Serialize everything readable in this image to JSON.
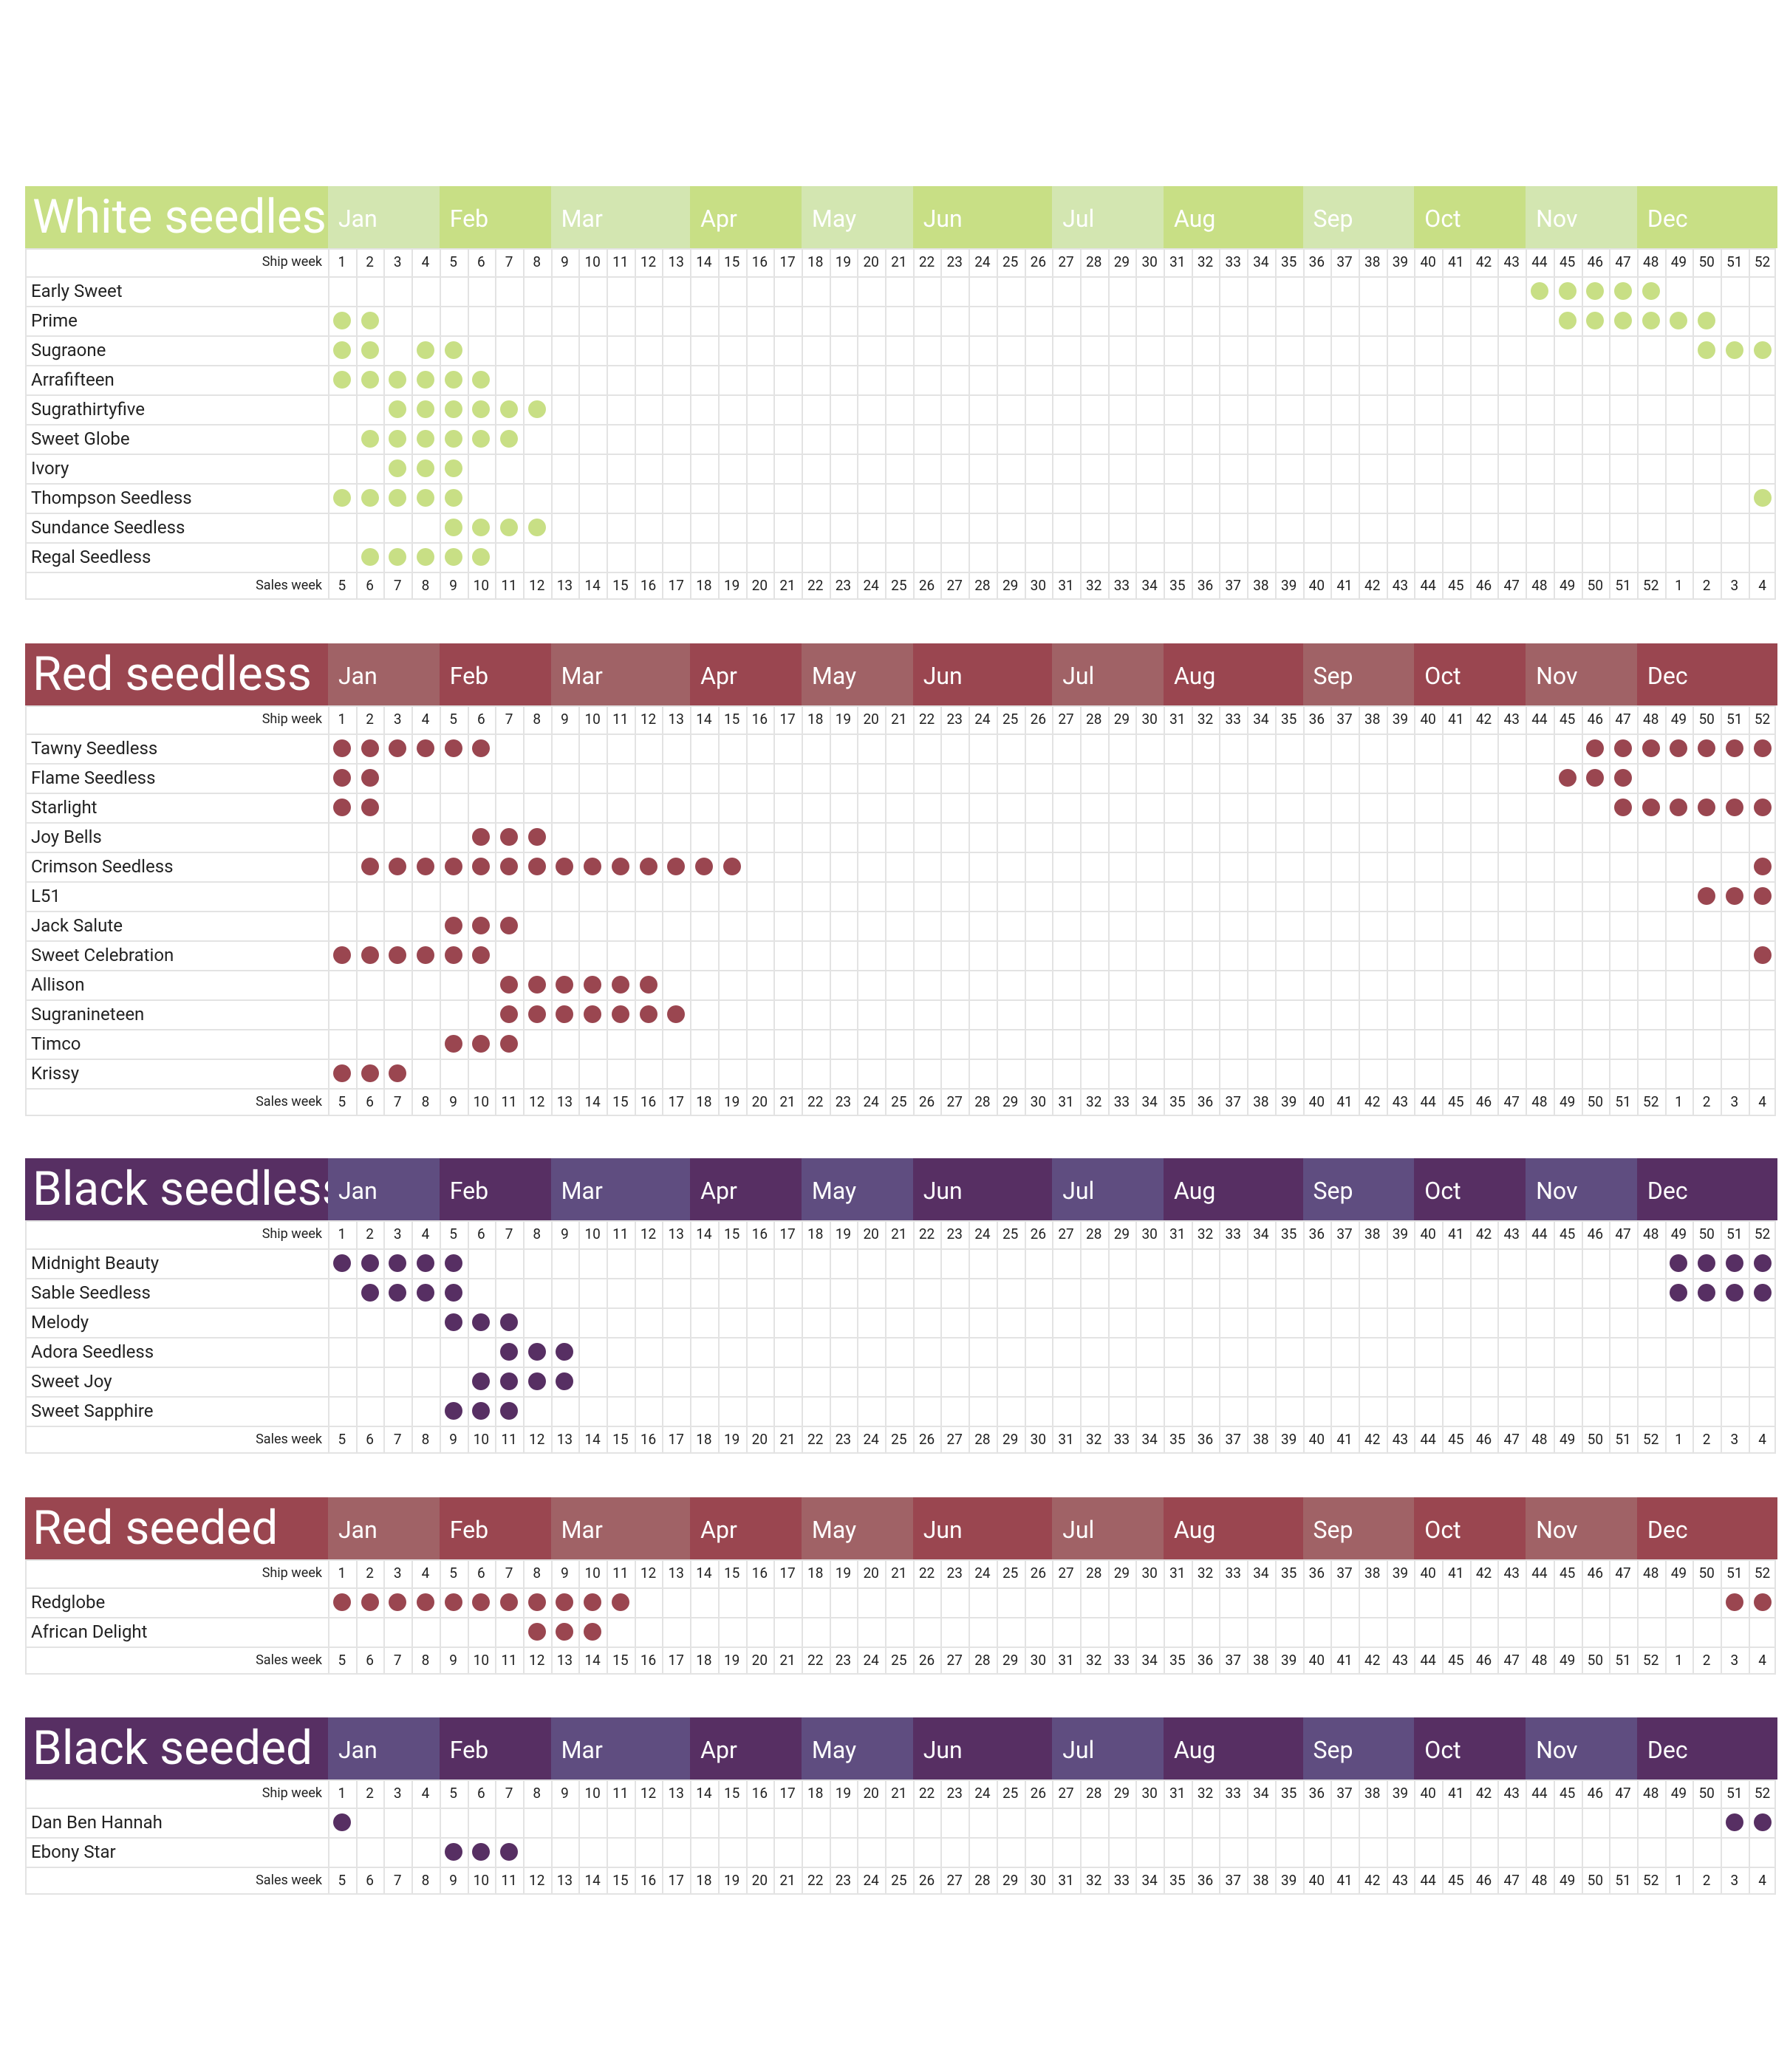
{
  "months": [
    "Jan",
    "Feb",
    "Mar",
    "Apr",
    "May",
    "Jun",
    "Jul",
    "Aug",
    "Sep",
    "Oct",
    "Nov",
    "Dec"
  ],
  "ship_weeks": [
    1,
    2,
    3,
    4,
    5,
    6,
    7,
    8,
    9,
    10,
    11,
    12,
    13,
    14,
    15,
    16,
    17,
    18,
    19,
    20,
    21,
    22,
    23,
    24,
    25,
    26,
    27,
    28,
    29,
    30,
    31,
    32,
    33,
    34,
    35,
    36,
    37,
    38,
    39,
    40,
    41,
    42,
    43,
    44,
    45,
    46,
    47,
    48,
    49,
    50,
    51,
    52
  ],
  "sales_weeks": [
    5,
    6,
    7,
    8,
    9,
    10,
    11,
    12,
    13,
    14,
    15,
    16,
    17,
    18,
    19,
    20,
    21,
    22,
    23,
    24,
    25,
    26,
    27,
    28,
    29,
    30,
    31,
    32,
    33,
    34,
    35,
    36,
    37,
    38,
    39,
    40,
    41,
    42,
    43,
    44,
    45,
    46,
    47,
    48,
    49,
    50,
    51,
    52,
    1,
    2,
    3,
    4
  ],
  "labels": {
    "ship_week": "Ship week",
    "sales_week": "Sales week"
  },
  "chart_data": {
    "type": "table",
    "sections": [
      {
        "title": "White seedless",
        "colors": {
          "light": "#d3e6b1",
          "dark": "#c8df85",
          "dot": "#c8df85"
        },
        "varieties": [
          {
            "name": "Early Sweet",
            "weeks": [
              44,
              45,
              46,
              47,
              48
            ]
          },
          {
            "name": "Prime",
            "weeks": [
              1,
              2,
              45,
              46,
              47,
              48,
              49,
              50
            ]
          },
          {
            "name": "Sugraone",
            "weeks": [
              1,
              2,
              4,
              5,
              50,
              51,
              52
            ]
          },
          {
            "name": "Arrafifteen",
            "weeks": [
              1,
              2,
              3,
              4,
              5,
              6
            ]
          },
          {
            "name": "Sugrathirtyfive",
            "weeks": [
              3,
              4,
              5,
              6,
              7,
              8
            ]
          },
          {
            "name": "Sweet Globe",
            "weeks": [
              2,
              3,
              4,
              5,
              6,
              7
            ]
          },
          {
            "name": "Ivory",
            "weeks": [
              3,
              4,
              5
            ]
          },
          {
            "name": "Thompson Seedless",
            "weeks": [
              1,
              2,
              3,
              4,
              5,
              52
            ]
          },
          {
            "name": "Sundance Seedless",
            "weeks": [
              5,
              6,
              7,
              8
            ]
          },
          {
            "name": "Regal Seedless",
            "weeks": [
              2,
              3,
              4,
              5,
              6
            ]
          }
        ]
      },
      {
        "title": "Red seedless",
        "colors": {
          "light": "#a06266",
          "dark": "#9a4650",
          "dot": "#9a4650"
        },
        "varieties": [
          {
            "name": "Tawny Seedless",
            "weeks": [
              1,
              2,
              3,
              4,
              5,
              6,
              46,
              47,
              48,
              49,
              50,
              51,
              52
            ]
          },
          {
            "name": "Flame Seedless",
            "weeks": [
              1,
              2,
              45,
              46,
              47
            ]
          },
          {
            "name": "Starlight",
            "weeks": [
              1,
              2,
              47,
              48,
              49,
              50,
              51,
              52
            ]
          },
          {
            "name": "Joy Bells",
            "weeks": [
              6,
              7,
              8
            ]
          },
          {
            "name": "Crimson Seedless",
            "weeks": [
              2,
              3,
              4,
              5,
              6,
              7,
              8,
              9,
              10,
              11,
              12,
              13,
              14,
              15,
              52
            ]
          },
          {
            "name": "L51",
            "weeks": [
              50,
              51,
              52
            ]
          },
          {
            "name": "Jack Salute",
            "weeks": [
              5,
              6,
              7
            ]
          },
          {
            "name": "Sweet Celebration",
            "weeks": [
              1,
              2,
              3,
              4,
              5,
              6,
              52
            ]
          },
          {
            "name": "Allison",
            "weeks": [
              7,
              8,
              9,
              10,
              11,
              12
            ]
          },
          {
            "name": "Sugranineteen",
            "weeks": [
              7,
              8,
              9,
              10,
              11,
              12,
              13
            ]
          },
          {
            "name": "Timco",
            "weeks": [
              5,
              6,
              7
            ]
          },
          {
            "name": "Krissy",
            "weeks": [
              1,
              2,
              3
            ]
          }
        ]
      },
      {
        "title": "Black seedless",
        "colors": {
          "light": "#5f4d80",
          "dark": "#572f63",
          "dot": "#572f63"
        },
        "varieties": [
          {
            "name": "Midnight Beauty",
            "weeks": [
              1,
              2,
              3,
              4,
              5,
              49,
              50,
              51,
              52
            ]
          },
          {
            "name": "Sable Seedless",
            "weeks": [
              2,
              3,
              4,
              5,
              49,
              50,
              51,
              52
            ]
          },
          {
            "name": "Melody",
            "weeks": [
              5,
              6,
              7
            ]
          },
          {
            "name": "Adora Seedless",
            "weeks": [
              7,
              8,
              9
            ]
          },
          {
            "name": "Sweet Joy",
            "weeks": [
              6,
              7,
              8,
              9
            ]
          },
          {
            "name": "Sweet Sapphire",
            "weeks": [
              5,
              6,
              7
            ]
          }
        ]
      },
      {
        "title": "Red seeded",
        "colors": {
          "light": "#a06266",
          "dark": "#9a4650",
          "dot": "#9a4650"
        },
        "varieties": [
          {
            "name": "Redglobe",
            "weeks": [
              1,
              2,
              3,
              4,
              5,
              6,
              7,
              8,
              9,
              10,
              11,
              51,
              52
            ]
          },
          {
            "name": "African Delight",
            "weeks": [
              8,
              9,
              10
            ]
          }
        ]
      },
      {
        "title": "Black seeded",
        "colors": {
          "light": "#5f4d80",
          "dark": "#572f63",
          "dot": "#572f63"
        },
        "varieties": [
          {
            "name": "Dan Ben Hannah",
            "weeks": [
              1,
              51,
              52
            ]
          },
          {
            "name": "Ebony Star",
            "weeks": [
              5,
              6,
              7
            ]
          }
        ]
      }
    ]
  }
}
